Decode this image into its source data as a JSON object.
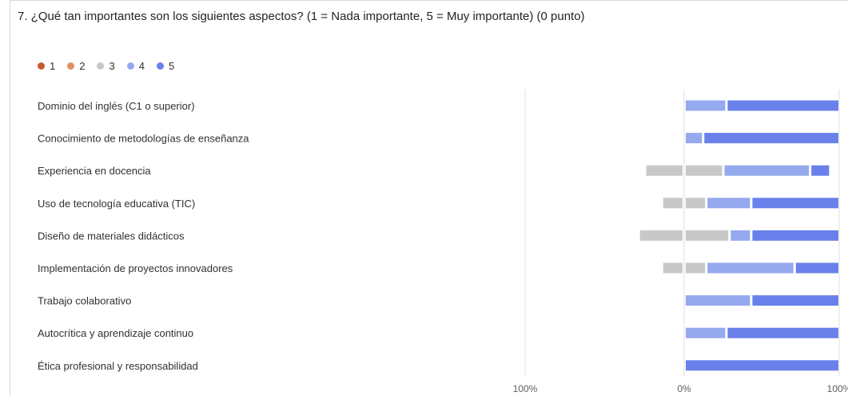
{
  "question": {
    "title": "7. ¿Qué tan importantes son los siguientes aspectos? (1 = Nada importante, 5 = Muy importante) (0 punto)"
  },
  "legend": [
    {
      "label": "1",
      "color": "#c55a2b"
    },
    {
      "label": "2",
      "color": "#e0915f"
    },
    {
      "label": "3",
      "color": "#c8c8c8"
    },
    {
      "label": "4",
      "color": "#95a9ee"
    },
    {
      "label": "5",
      "color": "#6a81eb"
    }
  ],
  "chart_data": {
    "type": "bar",
    "subtype": "diverging-stacked-horizontal",
    "categories": [
      "Dominio del inglés (C1 o superior)",
      "Conocimiento de metodologías de enseñanza",
      "Experiencia en docencia",
      "Uso de tecnología educativa (TIC)",
      "Diseño de materiales didácticos",
      "Implementación de proyectos innovadores",
      "Trabajo colaborativo",
      "Autocrítica y aprendizaje continuo",
      "Ética profesional y responsabilidad"
    ],
    "series": [
      {
        "name": "1",
        "values": [
          0,
          0,
          0,
          0,
          0,
          0,
          0,
          0,
          0
        ],
        "color": "#c55a2b"
      },
      {
        "name": "2",
        "values": [
          0,
          0,
          0,
          0,
          0,
          0,
          0,
          0,
          0
        ],
        "color": "#e0915f"
      },
      {
        "name": "3",
        "values": [
          0,
          0,
          25,
          14,
          29,
          14,
          0,
          0,
          0
        ],
        "color": "#c8c8c8"
      },
      {
        "name": "4",
        "values": [
          27,
          12,
          56,
          29,
          14,
          57,
          43,
          27,
          0
        ],
        "color": "#95a9ee"
      },
      {
        "name": "5",
        "values": [
          73,
          88,
          13,
          57,
          57,
          29,
          57,
          73,
          100
        ],
        "color": "#6a81eb"
      }
    ],
    "xlim": [
      -100,
      100
    ],
    "xticks": [
      "100%",
      "0%",
      "100%"
    ]
  }
}
